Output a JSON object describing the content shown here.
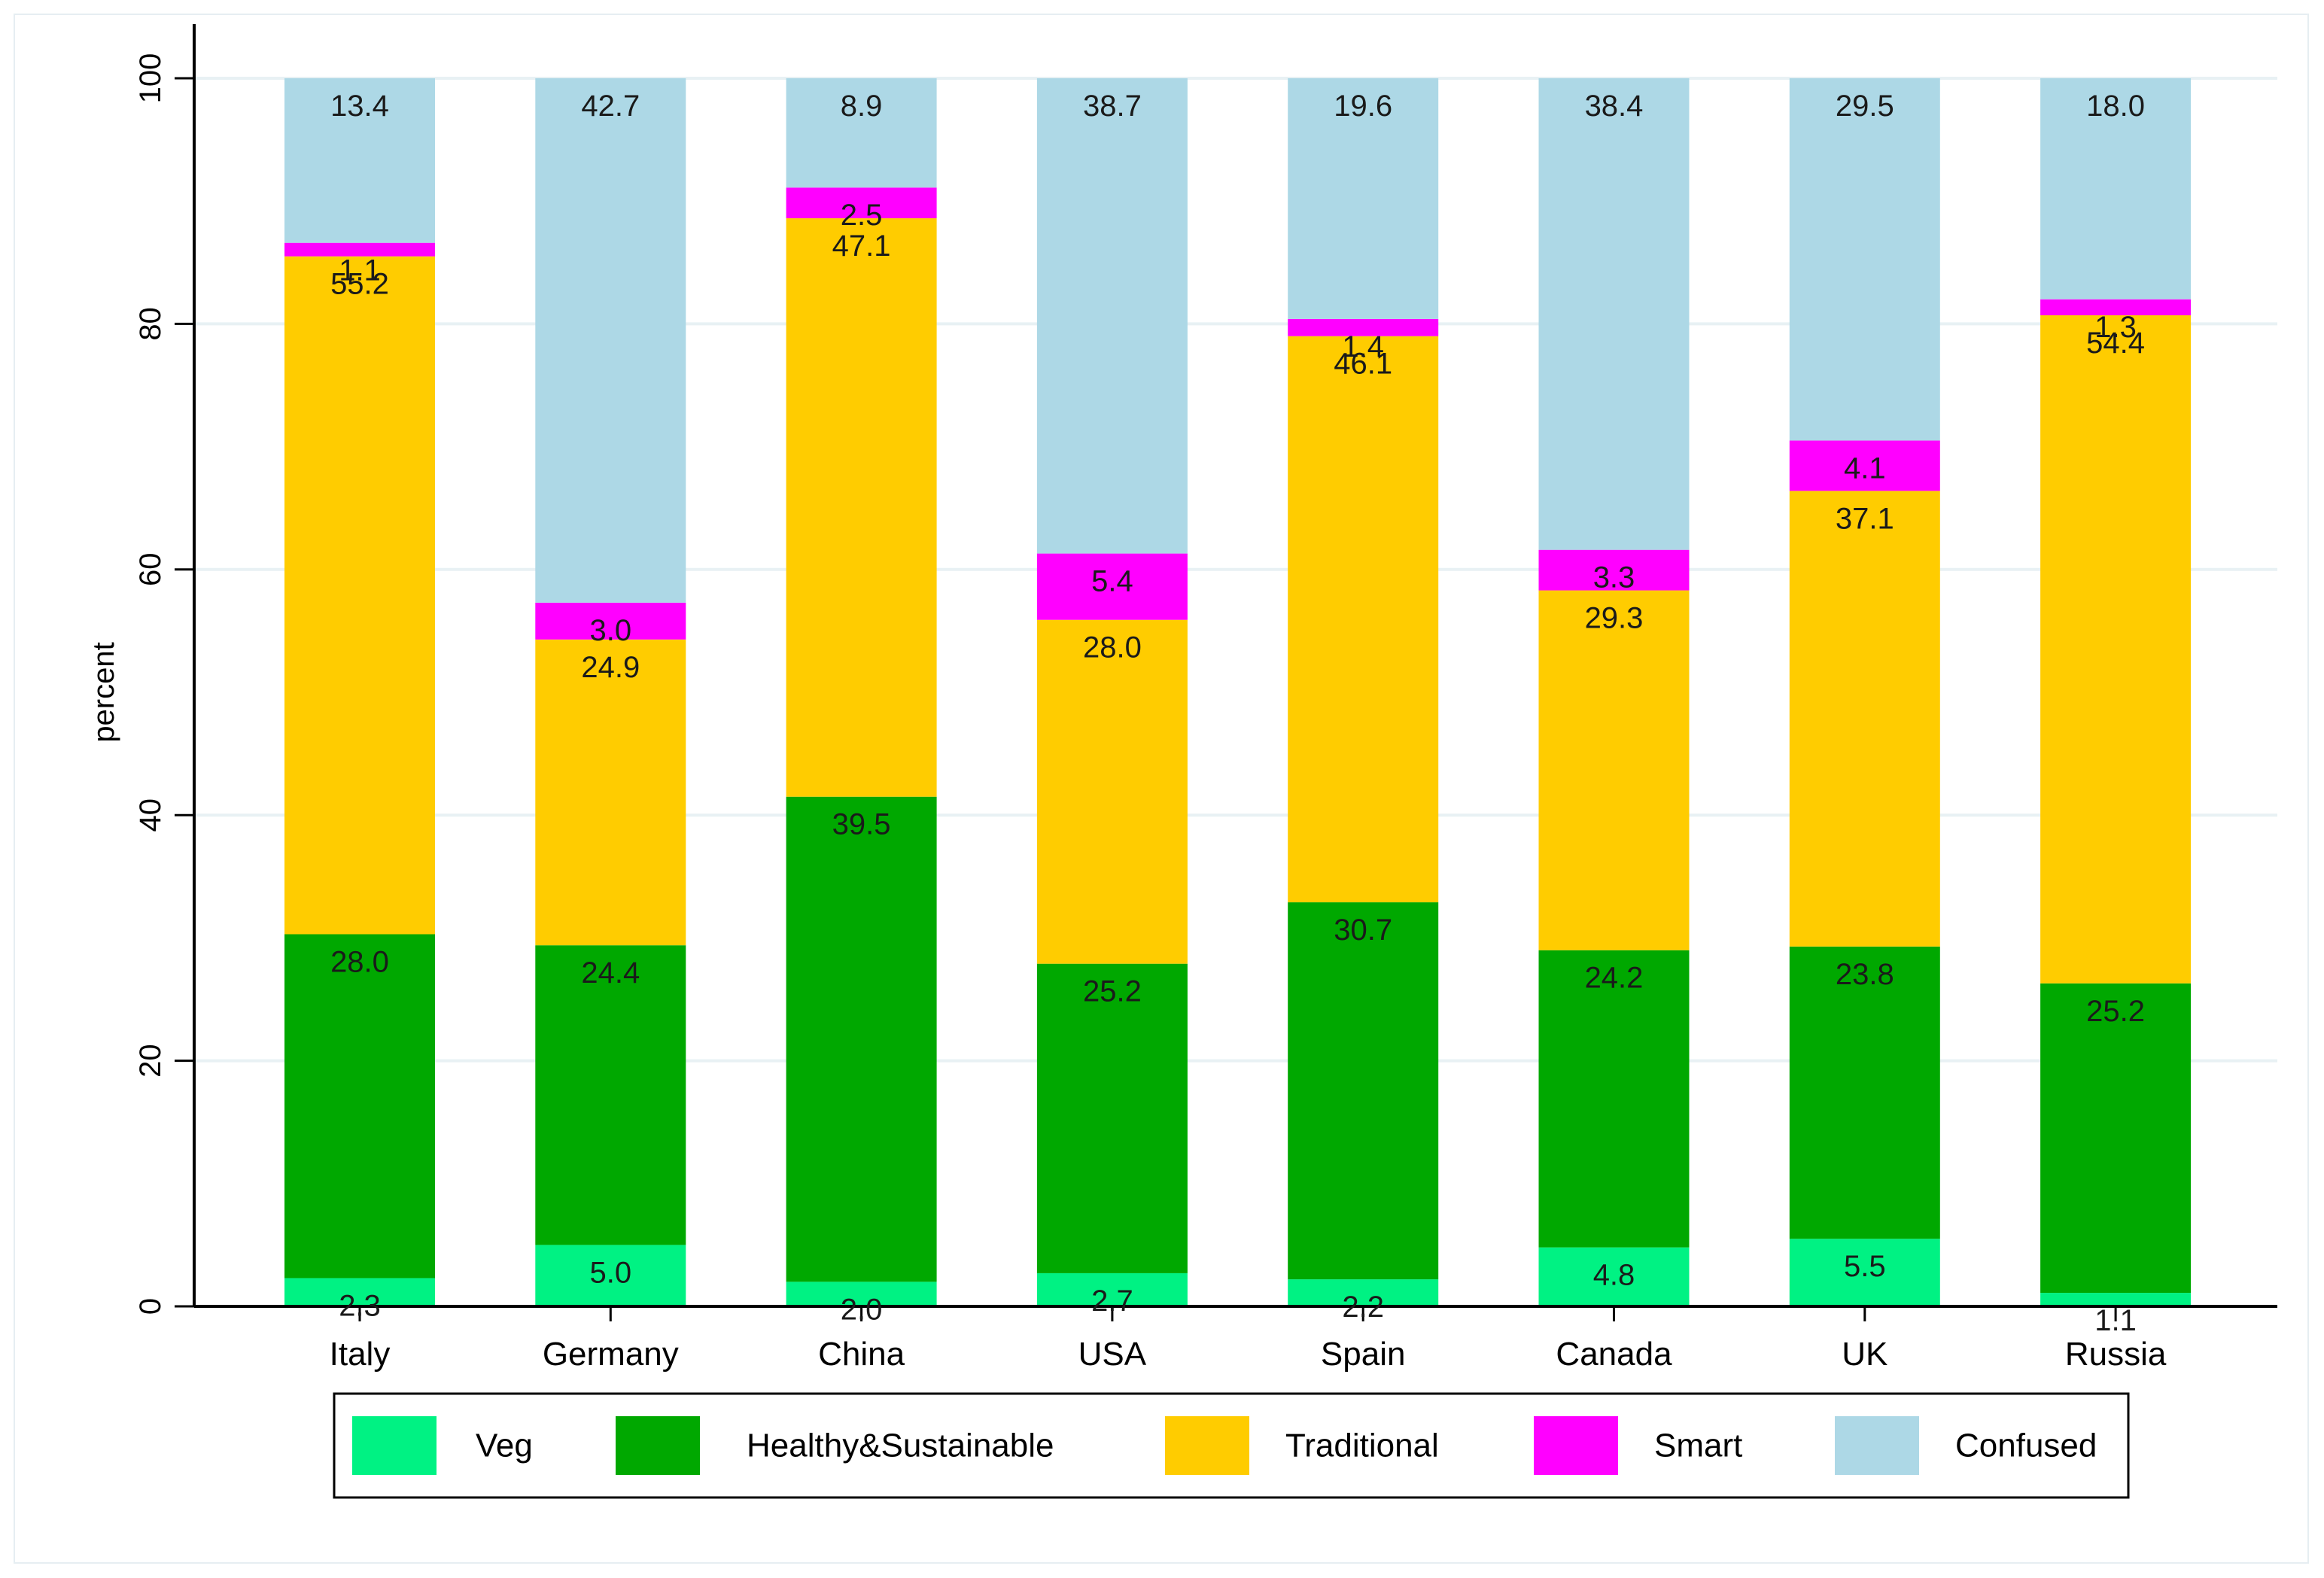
{
  "chart_data": {
    "type": "bar",
    "stacked": true,
    "title": "",
    "xlabel": "",
    "ylabel": "percent",
    "ylim": [
      0,
      100
    ],
    "yticks": [
      0,
      20,
      40,
      60,
      80,
      100
    ],
    "grid": true,
    "legend_position": "bottom",
    "categories": [
      "Italy",
      "Germany",
      "China",
      "USA",
      "Spain",
      "Canada",
      "UK",
      "Russia"
    ],
    "series": [
      {
        "name": "Veg",
        "color": "#00f283",
        "values": [
          2.3,
          5.0,
          2.0,
          2.7,
          2.2,
          4.8,
          5.5,
          1.1
        ]
      },
      {
        "name": "Healthy&Sustainable",
        "color": "#00a800",
        "values": [
          28.0,
          24.4,
          39.5,
          25.2,
          30.7,
          24.2,
          23.8,
          25.2
        ]
      },
      {
        "name": "Traditional",
        "color": "#ffcc00",
        "values": [
          55.2,
          24.9,
          47.1,
          28.0,
          46.1,
          29.3,
          37.1,
          54.4
        ]
      },
      {
        "name": "Smart",
        "color": "#ff00ff",
        "values": [
          1.1,
          3.0,
          2.5,
          5.4,
          1.4,
          3.3,
          4.1,
          1.3
        ]
      },
      {
        "name": "Confused",
        "color": "#add8e6",
        "values": [
          13.4,
          42.7,
          8.9,
          38.7,
          19.6,
          38.4,
          29.5,
          18.0
        ]
      }
    ]
  }
}
